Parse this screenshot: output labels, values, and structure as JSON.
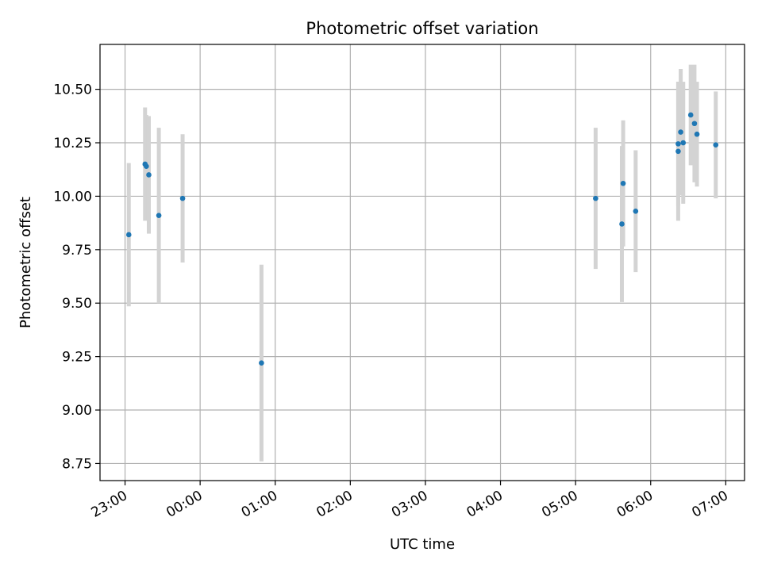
{
  "chart_data": {
    "type": "scatter",
    "title": "Photometric offset variation",
    "xlabel": "UTC time",
    "ylabel": "Photometric offset",
    "x_ticks": [
      "23:00",
      "00:00",
      "01:00",
      "02:00",
      "03:00",
      "04:00",
      "05:00",
      "06:00",
      "07:00"
    ],
    "y_ticks": [
      "8.75",
      "9.00",
      "9.25",
      "9.50",
      "9.75",
      "10.00",
      "10.25",
      "10.50"
    ],
    "xlim": [
      "22:40",
      "07:15"
    ],
    "ylim": [
      8.67,
      10.71
    ],
    "grid": true,
    "marker_color": "#1f77b4",
    "errorbar_color": "#d3d3d3",
    "points": [
      {
        "x": "23:03",
        "y": 9.82,
        "err": 0.335
      },
      {
        "x": "23:16",
        "y": 10.15,
        "err": 0.265
      },
      {
        "x": "23:17",
        "y": 10.14,
        "err": 0.24
      },
      {
        "x": "23:19",
        "y": 10.1,
        "err": 0.275
      },
      {
        "x": "23:27",
        "y": 9.91,
        "err": 0.41
      },
      {
        "x": "23:46",
        "y": 9.99,
        "err": 0.3
      },
      {
        "x": "00:49",
        "y": 9.22,
        "err": 0.46
      },
      {
        "x": "05:16",
        "y": 9.99,
        "err": 0.33
      },
      {
        "x": "05:37",
        "y": 9.87,
        "err": 0.365
      },
      {
        "x": "05:38",
        "y": 10.06,
        "err": 0.295
      },
      {
        "x": "05:48",
        "y": 9.93,
        "err": 0.285
      },
      {
        "x": "06:22",
        "y": 10.21,
        "err": 0.325
      },
      {
        "x": "06:22",
        "y": 10.245,
        "err": 0.29
      },
      {
        "x": "06:24",
        "y": 10.3,
        "err": 0.295
      },
      {
        "x": "06:26",
        "y": 10.25,
        "err": 0.285
      },
      {
        "x": "06:32",
        "y": 10.38,
        "err": 0.235
      },
      {
        "x": "06:35",
        "y": 10.34,
        "err": 0.275
      },
      {
        "x": "06:37",
        "y": 10.29,
        "err": 0.245
      },
      {
        "x": "06:52",
        "y": 10.24,
        "err": 0.25
      }
    ]
  }
}
